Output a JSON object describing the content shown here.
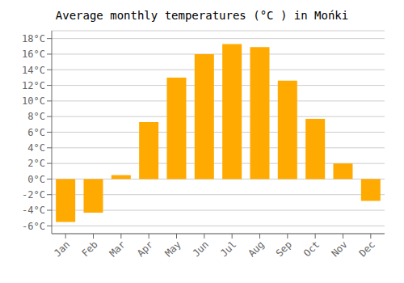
{
  "chart_data": {
    "type": "bar",
    "title": "Average monthly temperatures (°C ) in Mońki",
    "categories": [
      "Jan",
      "Feb",
      "Mar",
      "Apr",
      "May",
      "Jun",
      "Jul",
      "Aug",
      "Sep",
      "Oct",
      "Nov",
      "Dec"
    ],
    "values": [
      -5.5,
      -4.3,
      0.5,
      7.3,
      13.0,
      16.0,
      17.3,
      16.9,
      12.6,
      7.7,
      2.0,
      -2.8
    ],
    "color": "#FFAA00",
    "ylim": [
      -7,
      19
    ],
    "yticks": [
      {
        "value": -6,
        "label": "-6°C"
      },
      {
        "value": -4,
        "label": "-4°C"
      },
      {
        "value": -2,
        "label": "-2°C"
      },
      {
        "value": 0,
        "label": "0°C"
      },
      {
        "value": 2,
        "label": "2°C"
      },
      {
        "value": 4,
        "label": "4°C"
      },
      {
        "value": 6,
        "label": "6°C"
      },
      {
        "value": 8,
        "label": "8°C"
      },
      {
        "value": 10,
        "label": "10°C"
      },
      {
        "value": 12,
        "label": "12°C"
      },
      {
        "value": 14,
        "label": "14°C"
      },
      {
        "value": 16,
        "label": "16°C"
      },
      {
        "value": 18,
        "label": "18°C"
      }
    ],
    "grid": true
  }
}
